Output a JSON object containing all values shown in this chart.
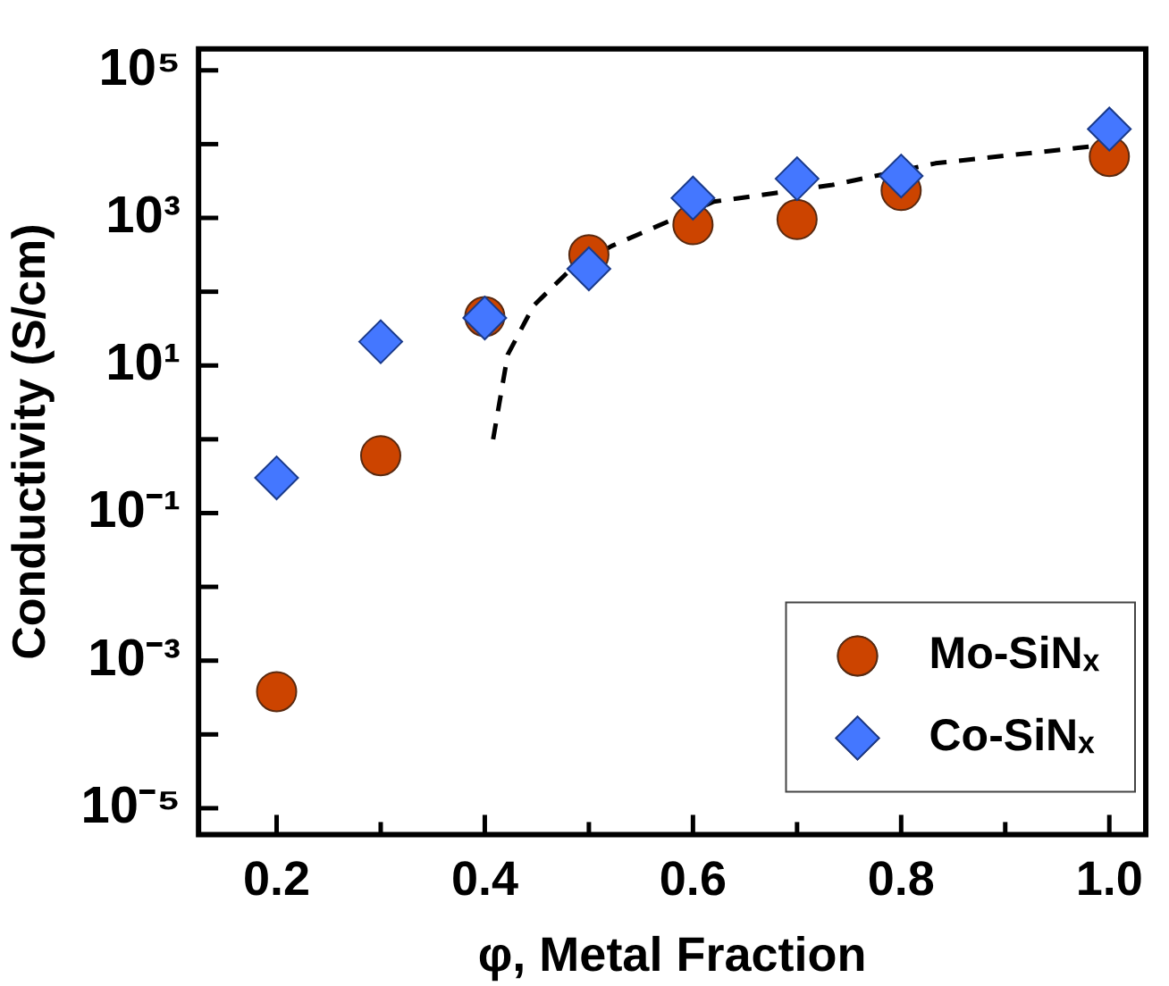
{
  "chart_data": {
    "type": "scatter",
    "xlabel": "φ, Metal Fraction",
    "ylabel": "Conductivity (S/cm)",
    "log": "y",
    "xlim": [
      0.125,
      1.035
    ],
    "xticks": [
      0.2,
      {
        "value": 0.3,
        "label": null
      },
      0.4,
      {
        "value": 0.5,
        "label": null
      },
      0.6,
      {
        "value": 0.7,
        "label": null
      },
      0.8,
      {
        "value": 0.9,
        "label": null
      },
      {
        "value": 1.0,
        "label": "1.0"
      }
    ],
    "ylim": [
      4.4e-06,
      195000
    ],
    "yticks": [
      {
        "value": 1e-05,
        "label": "10⁻⁵"
      },
      {
        "value": 0.0001,
        "label": null
      },
      {
        "value": 0.001,
        "label": "10⁻³"
      },
      {
        "value": 0.01,
        "label": null
      },
      {
        "value": 0.1,
        "label": "10⁻¹"
      },
      {
        "value": 1,
        "label": null
      },
      {
        "value": 10,
        "label": "10¹"
      },
      {
        "value": 100,
        "label": null
      },
      {
        "value": 1000,
        "label": "10³"
      },
      {
        "value": 10000,
        "label": null
      },
      {
        "value": 100000,
        "label": "10⁵"
      }
    ],
    "legend": "bottom right",
    "grid": false,
    "series": [
      {
        "name": "Mo-SiNₓ",
        "color": "#cc4400",
        "marker": "circle",
        "x": [
          0.2,
          0.3,
          0.4,
          0.5,
          0.6,
          0.7,
          0.8,
          1.0
        ],
        "values": [
          0.00038,
          0.6,
          46,
          316,
          810,
          950,
          2350,
          6800
        ]
      },
      {
        "name": "Co-SiNₓ",
        "color": "#4477ff",
        "marker": "diamond",
        "x": [
          0.2,
          0.3,
          0.4,
          0.5,
          0.6,
          0.7,
          0.8,
          1.0
        ],
        "values": [
          0.3,
          21,
          44,
          204,
          1860,
          3400,
          3700,
          16000
        ]
      },
      {
        "type": "line",
        "color": "#000000",
        "marker": "none",
        "line_style": "dashed",
        "x": [
          0.408,
          0.422,
          0.447,
          0.483,
          0.522,
          0.62,
          0.734,
          0.833,
          0.97,
          1.0
        ],
        "values": [
          1.0,
          14,
          65,
          204,
          417,
          1660,
          2800,
          5500,
          8900,
          10000
        ]
      }
    ]
  }
}
